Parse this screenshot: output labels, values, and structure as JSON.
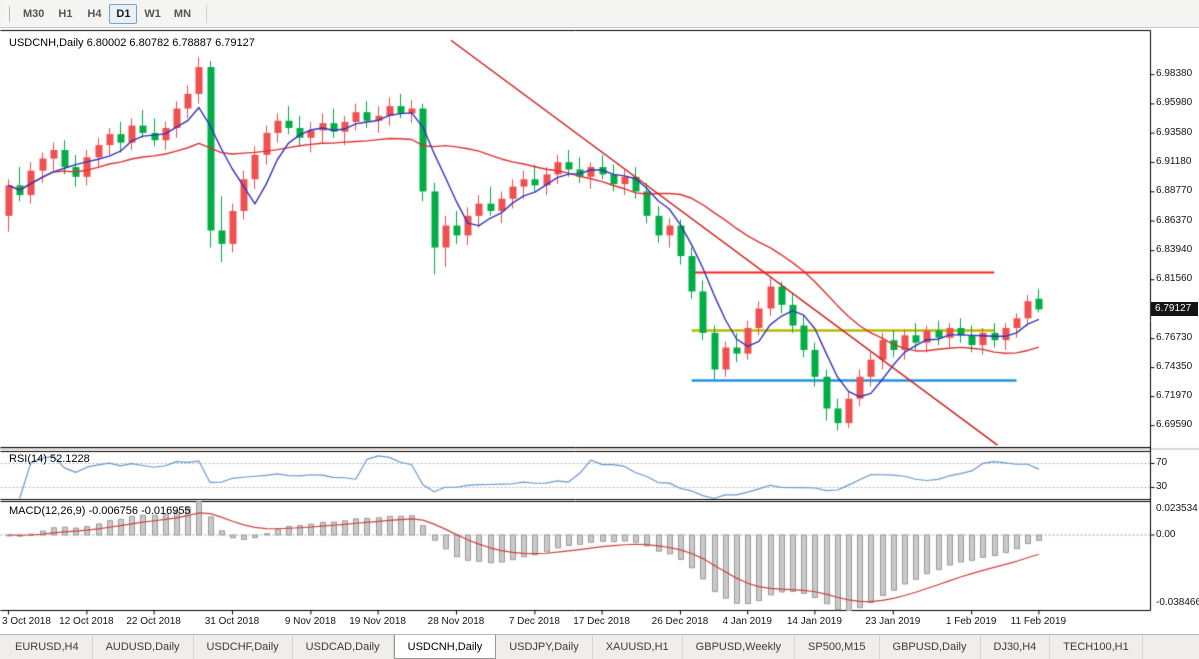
{
  "toolbar": {
    "timeframes": [
      "M30",
      "H1",
      "H4",
      "D1",
      "W1",
      "MN"
    ],
    "active": "D1"
  },
  "chart": {
    "title": "USDCNH,Daily 6.80002 6.80782 6.78887 6.79127",
    "symbol": "USDCNH",
    "period": "Daily",
    "ohlc_display": {
      "open": "6.80002",
      "high": "6.80782",
      "low": "6.78887",
      "close": "6.79127"
    },
    "price_badge": "6.79127"
  },
  "rsi": {
    "label": "RSI(14) 52.1228",
    "value": "52.1228",
    "axis_labels": [
      "70",
      "30"
    ]
  },
  "macd": {
    "label": "MACD(12,26,9) -0.006756 -0.016955",
    "values": [
      "-0.006756",
      "-0.016955"
    ],
    "axis_labels": [
      "0.023534",
      "0.00",
      "-0.038466"
    ]
  },
  "tabs": {
    "items": [
      "EURUSD,H4",
      "AUDUSD,Daily",
      "USDCHF,Daily",
      "USDCAD,Daily",
      "USDCNH,Daily",
      "USDJPY,Daily",
      "XAUUSD,H1",
      "GBPUSD,Weekly",
      "SP500,M15",
      "GBPUSD,Daily",
      "DJ30,H4",
      "TECH100,H1"
    ],
    "active": "USDCNH,Daily"
  },
  "chart_data": {
    "type": "candlestick",
    "title": "USDCNH,Daily",
    "y_axis": {
      "top": 7.02,
      "bottom": 6.678,
      "labels": [
        "6.98380",
        "6.95980",
        "6.93580",
        "6.91180",
        "6.88770",
        "6.86370",
        "6.83940",
        "6.81560",
        "6.76730",
        "6.74350",
        "6.71970",
        "6.69590"
      ]
    },
    "x_ticks": [
      {
        "i": 0,
        "label": "3 Oct 2018"
      },
      {
        "i": 7,
        "label": "12 Oct 2018"
      },
      {
        "i": 13,
        "label": "22 Oct 2018"
      },
      {
        "i": 20,
        "label": "31 Oct 2018"
      },
      {
        "i": 27,
        "label": "9 Nov 2018"
      },
      {
        "i": 33,
        "label": "19 Nov 2018"
      },
      {
        "i": 40,
        "label": "28 Nov 2018"
      },
      {
        "i": 47,
        "label": "7 Dec 2018"
      },
      {
        "i": 53,
        "label": "17 Dec 2018"
      },
      {
        "i": 60,
        "label": "26 Dec 2018"
      },
      {
        "i": 66,
        "label": "4 Jan 2019"
      },
      {
        "i": 72,
        "label": "14 Jan 2019"
      },
      {
        "i": 79,
        "label": "23 Jan 2019"
      },
      {
        "i": 86,
        "label": "1 Feb 2019"
      },
      {
        "i": 92,
        "label": "11 Feb 2019"
      }
    ],
    "ohlc": [
      [
        6.868,
        6.898,
        6.855,
        6.893
      ],
      [
        6.893,
        6.908,
        6.88,
        6.885
      ],
      [
        6.885,
        6.912,
        6.878,
        6.905
      ],
      [
        6.905,
        6.92,
        6.895,
        6.915
      ],
      [
        6.915,
        6.928,
        6.905,
        6.922
      ],
      [
        6.922,
        6.93,
        6.902,
        6.908
      ],
      [
        6.908,
        6.918,
        6.892,
        6.9
      ],
      [
        6.9,
        6.922,
        6.893,
        6.916
      ],
      [
        6.916,
        6.932,
        6.908,
        6.926
      ],
      [
        6.926,
        6.94,
        6.918,
        6.935
      ],
      [
        6.935,
        6.945,
        6.92,
        6.928
      ],
      [
        6.928,
        6.948,
        6.922,
        6.942
      ],
      [
        6.942,
        6.955,
        6.932,
        6.936
      ],
      [
        6.936,
        6.948,
        6.925,
        6.93
      ],
      [
        6.93,
        6.945,
        6.922,
        6.94
      ],
      [
        6.94,
        6.962,
        6.932,
        6.956
      ],
      [
        6.956,
        6.975,
        6.948,
        6.968
      ],
      [
        6.968,
        6.998,
        6.96,
        6.99
      ],
      [
        6.99,
        6.995,
        6.842,
        6.856
      ],
      [
        6.856,
        6.884,
        6.83,
        6.845
      ],
      [
        6.845,
        6.878,
        6.838,
        6.872
      ],
      [
        6.872,
        6.905,
        6.865,
        6.898
      ],
      [
        6.898,
        6.925,
        6.89,
        6.918
      ],
      [
        6.918,
        6.942,
        6.91,
        6.936
      ],
      [
        6.936,
        6.952,
        6.928,
        6.946
      ],
      [
        6.946,
        6.958,
        6.935,
        6.94
      ],
      [
        6.94,
        6.95,
        6.925,
        6.932
      ],
      [
        6.932,
        6.945,
        6.92,
        6.938
      ],
      [
        6.938,
        6.952,
        6.928,
        6.944
      ],
      [
        6.944,
        6.956,
        6.932,
        6.937
      ],
      [
        6.937,
        6.95,
        6.926,
        6.945
      ],
      [
        6.945,
        6.96,
        6.938,
        6.953
      ],
      [
        6.953,
        6.962,
        6.94,
        6.946
      ],
      [
        6.946,
        6.958,
        6.936,
        6.95
      ],
      [
        6.95,
        6.965,
        6.942,
        6.958
      ],
      [
        6.958,
        6.968,
        6.948,
        6.952
      ],
      [
        6.952,
        6.963,
        6.944,
        6.956
      ],
      [
        6.956,
        6.96,
        6.88,
        6.888
      ],
      [
        6.888,
        6.895,
        6.82,
        6.842
      ],
      [
        6.842,
        6.868,
        6.826,
        6.86
      ],
      [
        6.86,
        6.872,
        6.845,
        6.852
      ],
      [
        6.852,
        6.875,
        6.844,
        6.868
      ],
      [
        6.868,
        6.885,
        6.858,
        6.878
      ],
      [
        6.878,
        6.892,
        6.868,
        6.872
      ],
      [
        6.872,
        6.888,
        6.862,
        6.882
      ],
      [
        6.882,
        6.898,
        6.874,
        6.892
      ],
      [
        6.892,
        6.905,
        6.882,
        6.898
      ],
      [
        6.898,
        6.91,
        6.888,
        6.893
      ],
      [
        6.893,
        6.908,
        6.885,
        6.902
      ],
      [
        6.902,
        6.918,
        6.894,
        6.912
      ],
      [
        6.912,
        6.922,
        6.9,
        6.906
      ],
      [
        6.906,
        6.916,
        6.895,
        6.9
      ],
      [
        6.9,
        6.912,
        6.89,
        6.908
      ],
      [
        6.908,
        6.918,
        6.898,
        6.902
      ],
      [
        6.902,
        6.91,
        6.888,
        6.894
      ],
      [
        6.894,
        6.906,
        6.885,
        6.9
      ],
      [
        6.9,
        6.908,
        6.882,
        6.888
      ],
      [
        6.888,
        6.895,
        6.862,
        6.868
      ],
      [
        6.868,
        6.876,
        6.846,
        6.852
      ],
      [
        6.852,
        6.866,
        6.842,
        6.86
      ],
      [
        6.86,
        6.865,
        6.828,
        6.835
      ],
      [
        6.835,
        6.842,
        6.8,
        6.806
      ],
      [
        6.806,
        6.815,
        6.766,
        6.772
      ],
      [
        6.772,
        6.778,
        6.734,
        6.742
      ],
      [
        6.742,
        6.765,
        6.736,
        6.76
      ],
      [
        6.76,
        6.772,
        6.748,
        6.755
      ],
      [
        6.755,
        6.782,
        6.75,
        6.776
      ],
      [
        6.776,
        6.798,
        6.77,
        6.792
      ],
      [
        6.792,
        6.817,
        6.786,
        6.81
      ],
      [
        6.81,
        6.814,
        6.788,
        6.795
      ],
      [
        6.795,
        6.804,
        6.772,
        6.778
      ],
      [
        6.778,
        6.786,
        6.752,
        6.758
      ],
      [
        6.758,
        6.764,
        6.728,
        6.736
      ],
      [
        6.736,
        6.742,
        6.7,
        6.71
      ],
      [
        6.71,
        6.718,
        6.692,
        6.698
      ],
      [
        6.698,
        6.724,
        6.694,
        6.718
      ],
      [
        6.718,
        6.742,
        6.712,
        6.736
      ],
      [
        6.736,
        6.756,
        6.728,
        6.75
      ],
      [
        6.75,
        6.772,
        6.742,
        6.766
      ],
      [
        6.766,
        6.774,
        6.752,
        6.758
      ],
      [
        6.758,
        6.775,
        6.75,
        6.77
      ],
      [
        6.77,
        6.78,
        6.758,
        6.764
      ],
      [
        6.764,
        6.778,
        6.756,
        6.774
      ],
      [
        6.774,
        6.782,
        6.762,
        6.768
      ],
      [
        6.768,
        6.78,
        6.76,
        6.776
      ],
      [
        6.776,
        6.784,
        6.764,
        6.77
      ],
      [
        6.77,
        6.778,
        6.756,
        6.762
      ],
      [
        6.762,
        6.776,
        6.754,
        6.772
      ],
      [
        6.772,
        6.78,
        6.76,
        6.766
      ],
      [
        6.766,
        6.78,
        6.758,
        6.776
      ],
      [
        6.776,
        6.788,
        6.768,
        6.784
      ],
      [
        6.784,
        6.803,
        6.778,
        6.798
      ],
      [
        6.80002,
        6.80782,
        6.78887,
        6.79127
      ]
    ],
    "colors": {
      "up": "#f05050",
      "down": "#00ad46",
      "background": "#ffffff"
    },
    "overlays": {
      "ma_fast": {
        "period": 5,
        "color": "#3434bd"
      },
      "ma_slow": {
        "period": 20,
        "color": "#e03030"
      },
      "trendline": {
        "i1": 39.5,
        "p1": 7.012,
        "i2": 88.3,
        "p2": 6.68,
        "color": "#cc2020"
      },
      "hlines": [
        {
          "price": 6.8215,
          "i1": 61,
          "i2": 88,
          "color": "#ff1f1f",
          "width": 2
        },
        {
          "price": 6.774,
          "i1": 61,
          "i2": 88,
          "color": "#b9b900",
          "width": 2.5
        },
        {
          "price": 6.733,
          "i1": 61,
          "i2": 90,
          "color": "#2492dc",
          "width": 2.5
        }
      ]
    },
    "rsi": {
      "period": 14,
      "color": "#6899cf",
      "levels": [
        70,
        30
      ],
      "range": [
        10,
        90
      ]
    },
    "macd": {
      "fast": 12,
      "slow": 26,
      "signal": 9,
      "hist_color": "#c9c9c9",
      "hist_border": "#9b9b9b",
      "signal_color": "#cf4040"
    }
  }
}
